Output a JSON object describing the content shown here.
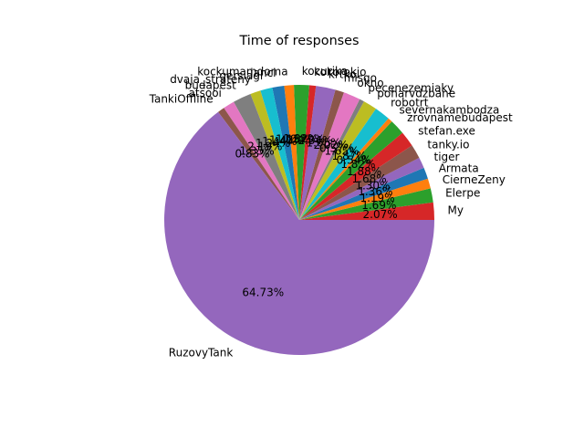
{
  "chart_data": {
    "type": "pie",
    "title": "Time of responses",
    "start_angle_deg": 0,
    "direction": "counterclockwise",
    "slices": [
      {
        "label": "My",
        "value": 2.07,
        "pct_text": "2.07%",
        "color": "#d62728"
      },
      {
        "label": "Elerpe",
        "value": 1.69,
        "pct_text": "1.69%",
        "color": "#2ca02c"
      },
      {
        "label": "CierneZeny",
        "value": 1.19,
        "pct_text": "1.19%",
        "color": "#ff7f0e"
      },
      {
        "label": "Armata",
        "value": 1.36,
        "pct_text": "1.36%",
        "color": "#1f77b4"
      },
      {
        "label": "tiger",
        "value": 1.3,
        "pct_text": "1.30%",
        "color": "#9467bd"
      },
      {
        "label": "tanky.io",
        "value": 1.68,
        "pct_text": "1.68%",
        "color": "#8c564b"
      },
      {
        "label": "stefan.exe",
        "value": 1.88,
        "pct_text": "1.88%",
        "color": "#d62728"
      },
      {
        "label": "zrovnamebudapest",
        "value": 1.82,
        "pct_text": "1.82%",
        "color": "#2ca02c"
      },
      {
        "label": "severnakambodza",
        "value": 0.54,
        "pct_text": "0.54%",
        "color": "#ff7f0e"
      },
      {
        "label": "robotrt",
        "value": 1.87,
        "pct_text": "1.87%",
        "color": "#17becf"
      },
      {
        "label": "poharvdzbane",
        "value": 1.65,
        "pct_text": "1.65%",
        "color": "#bcbd22"
      },
      {
        "label": "pecenezemiaky",
        "value": 0.57,
        "pct_text": "0.57%",
        "color": "#7f7f7f"
      },
      {
        "label": "okno",
        "value": 2.02,
        "pct_text": "2.02%",
        "color": "#e377c2"
      },
      {
        "label": "misqo",
        "value": 1.05,
        "pct_text": "1.05%",
        "color": "#8c564b"
      },
      {
        "label": "krtko",
        "value": 2.34,
        "pct_text": "2.34%",
        "color": "#9467bd"
      },
      {
        "label": "kokorokjo",
        "value": 0.79,
        "pct_text": "0.79%",
        "color": "#d62728"
      },
      {
        "label": "kocurika",
        "value": 1.82,
        "pct_text": "1.82%",
        "color": "#2ca02c"
      },
      {
        "label": "kockumamdoma",
        "value": 1.15,
        "pct_text": "1.15%",
        "color": "#ff7f0e"
      },
      {
        "label": "janci",
        "value": 1.42,
        "pct_text": "1.42%",
        "color": "#1f77b4"
      },
      {
        "label": "gersiagi",
        "value": 1.44,
        "pct_text": "1.44%",
        "color": "#17becf"
      },
      {
        "label": "dvaja_strateny",
        "value": 1.24,
        "pct_text": "1.24%",
        "color": "#bcbd22"
      },
      {
        "label": "budapest",
        "value": 2.19,
        "pct_text": "2.19%",
        "color": "#7f7f7f"
      },
      {
        "label": "atsooi",
        "value": 1.35,
        "pct_text": "1.35%",
        "color": "#e377c2"
      },
      {
        "label": "TankiOffline",
        "value": 0.83,
        "pct_text": "0.83%",
        "color": "#8c564b"
      },
      {
        "label": "RuzovyTank",
        "value": 64.73,
        "pct_text": "64.73%",
        "color": "#9467bd"
      }
    ]
  }
}
